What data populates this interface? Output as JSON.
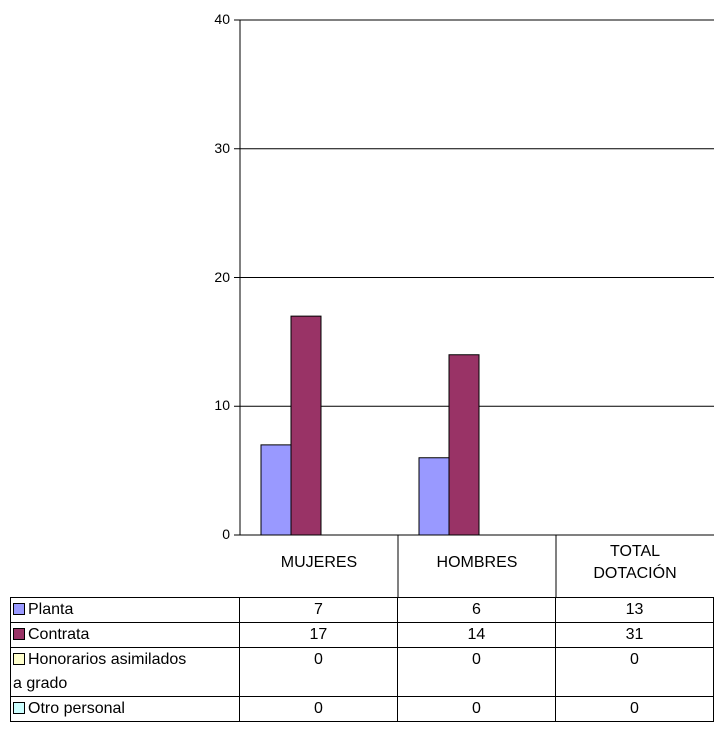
{
  "chart_data": {
    "type": "bar",
    "categories": [
      "MUJERES",
      "HOMBRES",
      "TOTAL DOTACIÓN"
    ],
    "category_lines": [
      [
        "MUJERES"
      ],
      [
        "HOMBRES"
      ],
      [
        "TOTAL",
        "DOTACIÓN"
      ]
    ],
    "ylim": [
      0,
      40
    ],
    "yticks": [
      0,
      10,
      20,
      30,
      40
    ],
    "grid": true,
    "series": [
      {
        "name": "Planta",
        "color": "#9999ff",
        "values": [
          7,
          6,
          13
        ],
        "plotted": [
          true,
          true,
          false
        ]
      },
      {
        "name": "Contrata",
        "color": "#993366",
        "values": [
          17,
          14,
          31
        ],
        "plotted": [
          true,
          true,
          false
        ]
      },
      {
        "name": "Honorarios asimilados a grado",
        "name_lines": [
          "Honorarios asimilados",
          "a grado"
        ],
        "color": "#ffffcc",
        "values": [
          0,
          0,
          0
        ],
        "plotted": [
          true,
          true,
          false
        ]
      },
      {
        "name": "Otro personal",
        "color": "#ccffff",
        "values": [
          0,
          0,
          0
        ],
        "plotted": [
          true,
          true,
          false
        ]
      }
    ],
    "data_table": true
  }
}
